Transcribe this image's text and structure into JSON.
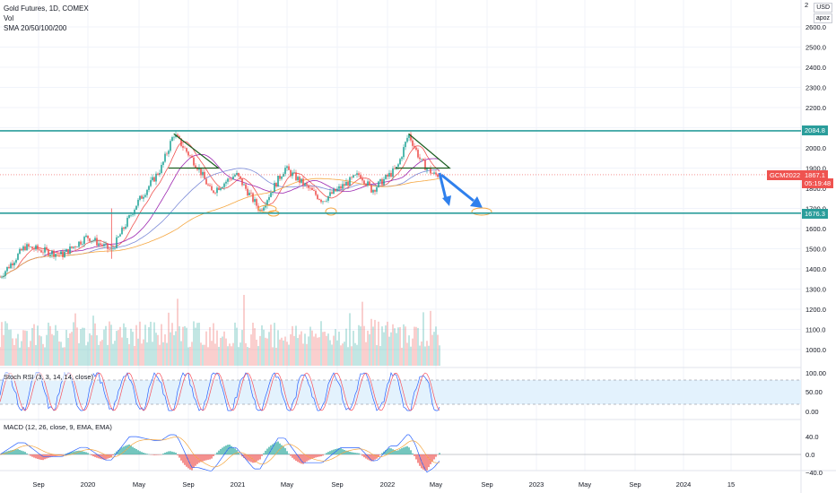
{
  "header": {
    "symbol": "Gold Futures, 1D, COMEX",
    "vol_label": "Vol",
    "sma_label": "SMA 20/50/100/200",
    "currency": "USD",
    "scale_mode": "apoz",
    "top_tick_partial": "2"
  },
  "tags": {
    "upper_level": "2084.8",
    "lower_level": "1676.3",
    "symbol_code": "GCM2022",
    "last_price": "1867.1",
    "countdown": "05:19:48"
  },
  "panes": {
    "stoch_label": "Stoch RSI (3, 3, 14, 14, close)",
    "macd_label": "MACD (12, 26, close, 9, EMA, EMA)"
  },
  "colors": {
    "up": "#26a69a",
    "down": "#ef5350",
    "level_line": "#2a9d9b",
    "arrow": "#2f80ed",
    "sma20": "#ef5350",
    "sma50": "#9c27b0",
    "sma100": "#7e8cd8",
    "sma200": "#f5a742",
    "stoch_k": "#2962ff",
    "stoch_d": "#f7525f",
    "stoch_band": "#e3f2fd"
  },
  "chart_data": {
    "type": "candlestick",
    "main_price_axis": [
      "2600.0",
      "2500.0",
      "2400.0",
      "2300.0",
      "2200.0",
      "2100.0",
      "2000.0",
      "1900.0",
      "1800.0",
      "1700.0",
      "1600.0",
      "1500.0",
      "1400.0",
      "1300.0",
      "1200.0",
      "1100.0",
      "1000.0"
    ],
    "stoch_axis": [
      "100.00",
      "50.00",
      "0.00"
    ],
    "macd_axis": [
      "40.0",
      "0.0",
      "−40.0"
    ],
    "time_axis": [
      "Sep",
      "2020",
      "May",
      "Sep",
      "2021",
      "May",
      "Sep",
      "2022",
      "May",
      "Sep",
      "2023",
      "May",
      "Sep",
      "2024",
      "15"
    ],
    "horizontal_levels": [
      2084.8,
      1676.3
    ],
    "price_path": [
      {
        "x": "2019-06",
        "y": 1360
      },
      {
        "x": "2019-08",
        "y": 1510
      },
      {
        "x": "2019-11",
        "y": 1470
      },
      {
        "x": "2020-01",
        "y": 1560
      },
      {
        "x": "2020-03",
        "y": 1490
      },
      {
        "x": "2020-05",
        "y": 1720
      },
      {
        "x": "2020-07",
        "y": 1900
      },
      {
        "x": "2020-08",
        "y": 2070
      },
      {
        "x": "2020-10",
        "y": 1900
      },
      {
        "x": "2020-11",
        "y": 1780
      },
      {
        "x": "2021-01",
        "y": 1870
      },
      {
        "x": "2021-03",
        "y": 1690
      },
      {
        "x": "2021-05",
        "y": 1900
      },
      {
        "x": "2021-08",
        "y": 1740
      },
      {
        "x": "2021-11",
        "y": 1870
      },
      {
        "x": "2021-12",
        "y": 1790
      },
      {
        "x": "2022-02",
        "y": 1900
      },
      {
        "x": "2022-03",
        "y": 2070
      },
      {
        "x": "2022-04",
        "y": 1930
      },
      {
        "x": "2022-05",
        "y": 1867
      }
    ]
  }
}
